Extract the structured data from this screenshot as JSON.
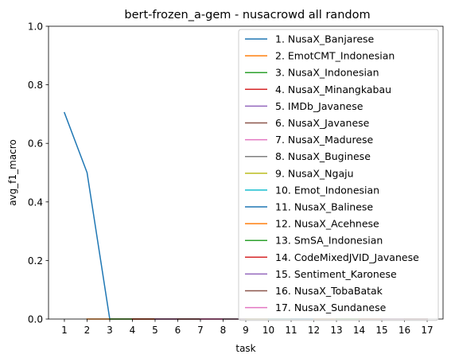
{
  "chart_data": {
    "type": "line",
    "title": "bert-frozen_a-gem - nusacrowd all random",
    "xlabel": "task",
    "ylabel": "avg_f1_macro",
    "xlim": [
      0.3,
      17.7
    ],
    "ylim": [
      0,
      1
    ],
    "x_ticks": [
      1,
      2,
      3,
      4,
      5,
      6,
      7,
      8,
      9,
      10,
      11,
      12,
      13,
      14,
      15,
      16,
      17
    ],
    "y_ticks": [
      "0.0",
      "0.2",
      "0.4",
      "0.6",
      "0.8",
      "1.0"
    ],
    "grid": false,
    "legend_position": "upper-right",
    "series": [
      {
        "name": "1. NusaX_Banjarese",
        "color": "#1f77b4",
        "x": [
          1,
          2,
          3,
          4,
          5,
          6,
          7,
          8,
          9,
          10,
          11,
          12,
          13,
          14,
          15,
          16,
          17
        ],
        "values": [
          0.705,
          0.5,
          0,
          0,
          0,
          0,
          0,
          0,
          0,
          0,
          0,
          0,
          0,
          0,
          0,
          0,
          0
        ]
      },
      {
        "name": "2. EmotCMT_Indonesian",
        "color": "#ff7f0e",
        "x": [
          2,
          3,
          4,
          5,
          6,
          7,
          8,
          9,
          10,
          11,
          12,
          13,
          14,
          15,
          16,
          17
        ],
        "values": [
          0,
          0,
          0,
          0,
          0,
          0,
          0,
          0,
          0,
          0,
          0,
          0,
          0,
          0,
          0,
          0
        ]
      },
      {
        "name": "3. NusaX_Indonesian",
        "color": "#2ca02c",
        "x": [
          3,
          4,
          5,
          6,
          7,
          8,
          9,
          10,
          11,
          12,
          13,
          14,
          15,
          16,
          17
        ],
        "values": [
          0,
          0,
          0,
          0,
          0,
          0,
          0,
          0,
          0,
          0,
          0,
          0,
          0,
          0,
          0
        ]
      },
      {
        "name": "4. NusaX_Minangkabau",
        "color": "#d62728",
        "x": [
          4,
          5,
          6,
          7,
          8,
          9,
          10,
          11,
          12,
          13,
          14,
          15,
          16,
          17
        ],
        "values": [
          0,
          0,
          0,
          0,
          0,
          0,
          0,
          0,
          0,
          0,
          0,
          0,
          0,
          0
        ]
      },
      {
        "name": "5. IMDb_Javanese",
        "color": "#9467bd",
        "x": [
          5,
          6,
          7,
          8,
          9,
          10,
          11,
          12,
          13,
          14,
          15,
          16,
          17
        ],
        "values": [
          0,
          0,
          0,
          0,
          0,
          0,
          0,
          0,
          0,
          0,
          0,
          0,
          0
        ]
      },
      {
        "name": "6. NusaX_Javanese",
        "color": "#8c564b",
        "x": [
          6,
          7,
          8,
          9,
          10,
          11,
          12,
          13,
          14,
          15,
          16,
          17
        ],
        "values": [
          0,
          0,
          0,
          0,
          0,
          0,
          0,
          0,
          0,
          0,
          0,
          0
        ]
      },
      {
        "name": "7. NusaX_Madurese",
        "color": "#e377c2",
        "x": [
          7,
          8,
          9,
          10,
          11,
          12,
          13,
          14,
          15,
          16,
          17
        ],
        "values": [
          0,
          0,
          0,
          0,
          0,
          0,
          0,
          0,
          0,
          0,
          0
        ]
      },
      {
        "name": "8. NusaX_Buginese",
        "color": "#7f7f7f",
        "x": [
          8,
          9,
          10,
          11,
          12,
          13,
          14,
          15,
          16,
          17
        ],
        "values": [
          0,
          0,
          0,
          0,
          0,
          0,
          0,
          0,
          0,
          0
        ]
      },
      {
        "name": "9. NusaX_Ngaju",
        "color": "#bcbd22",
        "x": [
          9,
          10,
          11,
          12,
          13,
          14,
          15,
          16,
          17
        ],
        "values": [
          0,
          0,
          0,
          0,
          0,
          0,
          0,
          0,
          0
        ]
      },
      {
        "name": "10. Emot_Indonesian",
        "color": "#17becf",
        "x": [
          10,
          11,
          12,
          13,
          14,
          15,
          16,
          17
        ],
        "values": [
          0,
          0,
          0,
          0,
          0,
          0,
          0,
          0
        ]
      },
      {
        "name": "11. NusaX_Balinese",
        "color": "#1f77b4",
        "x": [
          11,
          12,
          13,
          14,
          15,
          16,
          17
        ],
        "values": [
          0,
          0,
          0,
          0,
          0,
          0,
          0
        ]
      },
      {
        "name": "12. NusaX_Acehnese",
        "color": "#ff7f0e",
        "x": [
          12,
          13,
          14,
          15,
          16,
          17
        ],
        "values": [
          0,
          0,
          0,
          0,
          0,
          0
        ]
      },
      {
        "name": "13. SmSA_Indonesian",
        "color": "#2ca02c",
        "x": [
          13,
          14,
          15,
          16,
          17
        ],
        "values": [
          0,
          0,
          0,
          0,
          0
        ]
      },
      {
        "name": "14. CodeMixedJVID_Javanese",
        "color": "#d62728",
        "x": [
          14,
          15,
          16,
          17
        ],
        "values": [
          0,
          0,
          0,
          0
        ]
      },
      {
        "name": "15. Sentiment_Karonese",
        "color": "#9467bd",
        "x": [
          15,
          16,
          17
        ],
        "values": [
          0,
          0,
          0
        ]
      },
      {
        "name": "16. NusaX_TobaBatak",
        "color": "#8c564b",
        "x": [
          16,
          17
        ],
        "values": [
          0,
          0
        ]
      },
      {
        "name": "17. NusaX_Sundanese",
        "color": "#e377c2",
        "x": [
          17
        ],
        "values": [
          0
        ]
      }
    ]
  }
}
